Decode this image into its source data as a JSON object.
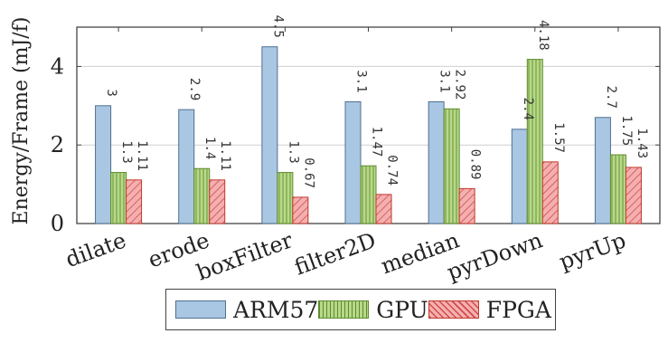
{
  "chart_data": {
    "type": "bar",
    "title": "",
    "xlabel": "",
    "ylabel": "Energy/Frame (mJ/f)",
    "ylim": [
      0,
      5
    ],
    "yticks": [
      0,
      2,
      4
    ],
    "grid": "horizontal",
    "legend_position": "bottom",
    "categories": [
      "dilate",
      "erode",
      "boxFilter",
      "filter2D",
      "median",
      "pyrDown",
      "pyrUp"
    ],
    "series": [
      {
        "name": "ARM57",
        "color": "#a9c7e2",
        "stroke": "#4f6f8f",
        "pattern": "solid",
        "values": [
          3,
          2.9,
          4.5,
          3.1,
          3.1,
          2.4,
          2.7
        ],
        "labels": [
          "3",
          "2.9",
          "4.5",
          "3.1",
          "3.1",
          "2.4",
          "2.7"
        ]
      },
      {
        "name": "GPU",
        "color": "#b7d989",
        "stroke": "#5f8a2f",
        "pattern": "vlines",
        "values": [
          1.3,
          1.4,
          1.3,
          1.47,
          2.92,
          4.18,
          1.75
        ],
        "labels": [
          "1.3",
          "1.4",
          "1.3",
          "1.47",
          "2.92",
          "4.18",
          "1.75"
        ]
      },
      {
        "name": "FPGA",
        "color": "#f2a6a6",
        "stroke": "#c0392b",
        "pattern": "hatch",
        "values": [
          1.11,
          1.11,
          0.67,
          0.74,
          0.89,
          1.57,
          1.43
        ],
        "labels": [
          "1.11",
          "1.11",
          "0.67",
          "0.74",
          "0.89",
          "1.57",
          "1.43"
        ]
      }
    ]
  }
}
